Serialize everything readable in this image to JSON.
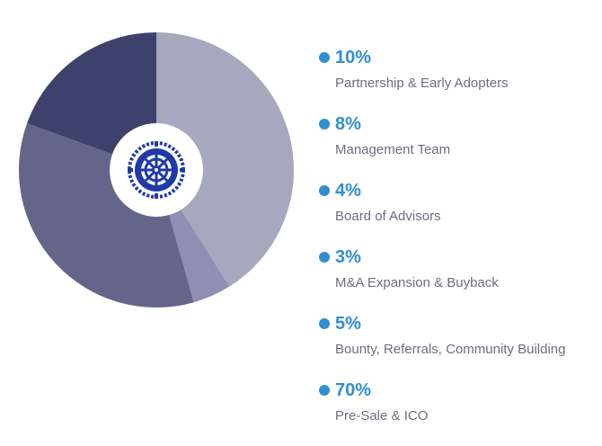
{
  "chart_data": {
    "type": "pie",
    "categories": [
      "Partnership & Early Adopters",
      "Management Team",
      "Board of Advisors",
      "M&A Expansion & Buyback",
      "Bounty, Referrals, Community Building",
      "Pre-Sale & ICO"
    ],
    "values": [
      10,
      8,
      4,
      3,
      5,
      70
    ],
    "value_labels": [
      "10%",
      "8%",
      "4%",
      "3%",
      "5%",
      "70%"
    ],
    "pie_drawn_fractions": [
      0.411,
      0.045,
      0.349,
      0.195
    ],
    "pie_colors": [
      "#a7a7bd",
      "#8e8fb3",
      "#636688",
      "#3f416d"
    ],
    "legend_placement": "right",
    "center_icon": "ship-wheel-logo-icon",
    "colors": {
      "accent": "#2f8fd0",
      "label_text": "#6b6e7f",
      "logo_blue": "#1f3aa8"
    }
  }
}
